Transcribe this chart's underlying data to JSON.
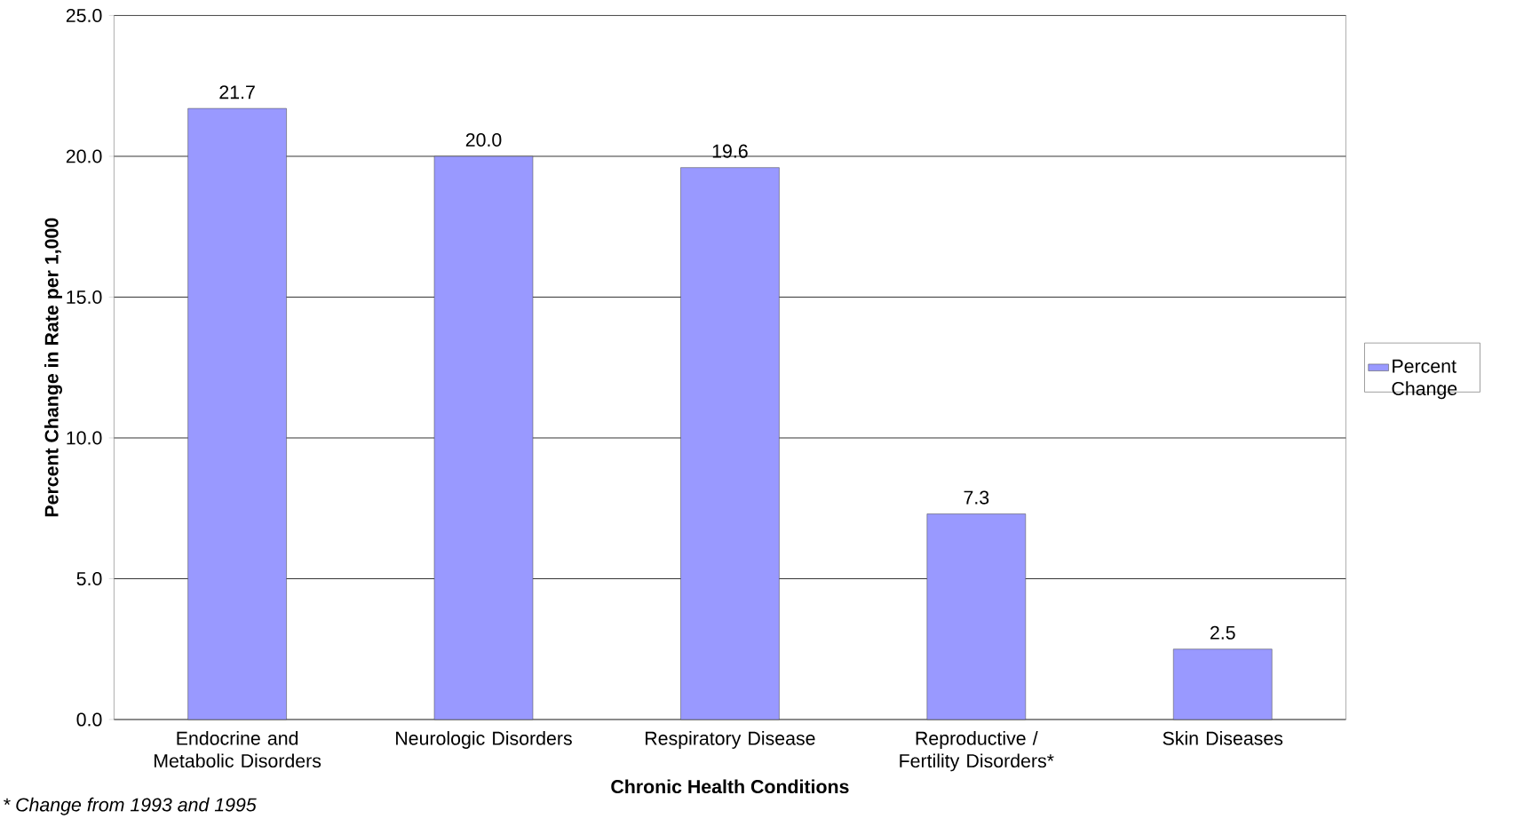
{
  "chart_data": {
    "type": "bar",
    "categories": [
      "Endocrine and Metabolic Disorders",
      "Neurologic Disorders",
      "Respiratory Disease",
      "Reproductive / Fertility Disorders*",
      "Skin Diseases"
    ],
    "series": [
      {
        "name": "Percent Change",
        "color": "#9999ff",
        "values": [
          21.7,
          20.0,
          19.6,
          7.3,
          2.5
        ]
      }
    ],
    "ylim": [
      0,
      25
    ],
    "yticks": [
      {
        "value": 0,
        "label": "0.0"
      },
      {
        "value": 5,
        "label": "5.0"
      },
      {
        "value": 10,
        "label": "10.0"
      },
      {
        "value": 15,
        "label": "15.0"
      },
      {
        "value": 20,
        "label": "20.0"
      },
      {
        "value": 25,
        "label": "25.0"
      }
    ],
    "value_labels": [
      "21.7",
      "20.0",
      "19.6",
      "7.3",
      "2.5"
    ],
    "xlabel": "Chronic Health Conditions",
    "ylabel": "Percent Change in Rate per 1,000",
    "annotations": [
      "* Change from 1993 and 1995"
    ],
    "grid": "y",
    "legend": "right"
  }
}
